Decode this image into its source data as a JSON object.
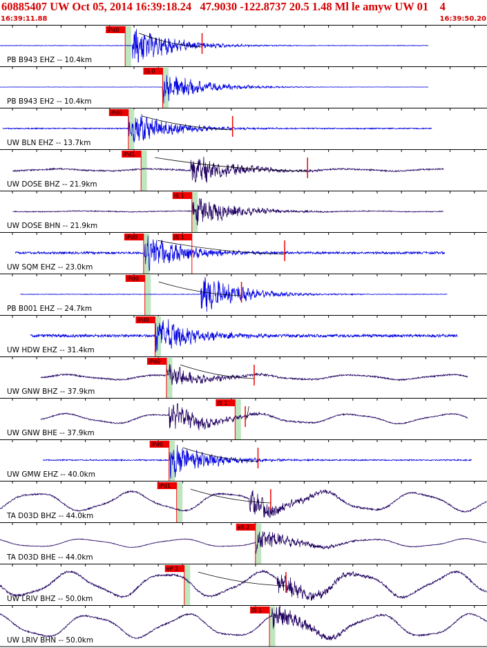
{
  "header": {
    "title": "60885407 UW Oct 05, 2014 16:39:18.24   47.9030 -122.8737 20.5 1.48 Ml le amyw UW 01    4",
    "start_time": "16:39:11.88",
    "end_time": "16:39:50.20"
  },
  "colors": {
    "title": "#d40000",
    "velocity_trace": "#0000e0",
    "broadband_trace": "#200060",
    "pick": "#ee0000",
    "pick_window": "#bfe6bf",
    "coda": "#000000",
    "separator": "#000000"
  },
  "chart_data": {
    "type": "seismogram",
    "time_range_s": [
      0,
      38.32
    ],
    "channels": [
      {
        "label": "PB B943 EHZ -- 10.4km",
        "color": "velocity_trace",
        "data_start_s": 0.0,
        "data_end_s": 33.7,
        "noise": 0.02,
        "amp": 0.95,
        "lowfreq": 0,
        "picks": [
          {
            "label": "iPd0",
            "t": 9.85,
            "bar": true
          }
        ],
        "arrival_s": 10.4,
        "s_marker_s": 15.9
      },
      {
        "label": "PB B943 EH2 -- 10.4km",
        "color": "velocity_trace",
        "data_start_s": 0.0,
        "data_end_s": 33.7,
        "noise": 0.01,
        "amp": 0.7,
        "lowfreq": 0,
        "picks": [
          {
            "label": "iS 0",
            "t": 12.8,
            "bar": true
          }
        ],
        "arrival_s": 12.8
      },
      {
        "label": "UW BLN EHZ -- 13.7km",
        "color": "velocity_trace",
        "data_start_s": 0.2,
        "data_end_s": 34.0,
        "noise": 0.04,
        "amp": 0.85,
        "lowfreq": 0,
        "picks": [
          {
            "label": "iPd0",
            "t": 10.1,
            "bar": true
          }
        ],
        "arrival_s": 10.1,
        "s_marker_s": 18.3
      },
      {
        "label": "UW DOSE BHZ -- 21.9km",
        "color": "broadband_trace",
        "data_start_s": 1.0,
        "data_end_s": 34.9,
        "noise": 0.05,
        "amp": 0.8,
        "lowfreq": 0.08,
        "picks": [
          {
            "label": "iPd1",
            "t": 11.1,
            "bar": true
          }
        ],
        "arrival_s": 15.0,
        "s_marker_s": 24.2
      },
      {
        "label": "UW DOSE BHN -- 21.9km",
        "color": "broadband_trace",
        "data_start_s": 1.0,
        "data_end_s": 34.9,
        "noise": 0.03,
        "amp": 0.8,
        "lowfreq": 0.03,
        "picks": [
          {
            "label": "iS 1",
            "t": 15.1,
            "bar": true
          }
        ],
        "arrival_s": 15.1
      },
      {
        "label": "UW SQM EHZ -- 23.0km",
        "color": "velocity_trace",
        "data_start_s": 1.2,
        "data_end_s": 35.0,
        "noise": 0.08,
        "amp": 0.95,
        "lowfreq": 0,
        "picks": [
          {
            "label": "iPd0",
            "t": 11.3,
            "bar": true
          },
          {
            "label": "iS 1",
            "t": 15.1,
            "bar": false
          }
        ],
        "arrival_s": 11.3,
        "s_marker_s": 22.4
      },
      {
        "label": "PB B001 EHZ -- 24.7km",
        "color": "velocity_trace",
        "data_start_s": 1.6,
        "data_end_s": 35.2,
        "noise": 0.02,
        "amp": 0.9,
        "lowfreq": 0,
        "picks": [
          {
            "label": "iPd0",
            "t": 11.4,
            "bar": true
          }
        ],
        "arrival_s": 15.8,
        "s_marker_s": 19.0
      },
      {
        "label": "UW HDW EHZ -- 31.4km",
        "color": "velocity_trace",
        "data_start_s": 2.4,
        "data_end_s": 36.0,
        "noise": 0.1,
        "amp": 0.9,
        "lowfreq": 0,
        "picks": [
          {
            "label": "iPd0",
            "t": 12.2,
            "bar": true
          }
        ],
        "arrival_s": 12.2
      },
      {
        "label": "UW GNW BHZ -- 37.9km",
        "color": "broadband_trace",
        "data_start_s": 3.2,
        "data_end_s": 36.8,
        "noise": 0.05,
        "amp": 0.55,
        "lowfreq": 0.18,
        "picks": [
          {
            "label": "iPd0",
            "t": 13.1,
            "bar": true
          }
        ],
        "arrival_s": 13.1,
        "s_marker_s": 20.0
      },
      {
        "label": "UW GNW BHE -- 37.9km",
        "color": "broadband_trace",
        "data_start_s": 3.2,
        "data_end_s": 36.8,
        "noise": 0.04,
        "amp": 0.65,
        "lowfreq": 0.35,
        "picks": [
          {
            "label": "iS 1",
            "t": 18.5,
            "bar": true
          }
        ],
        "arrival_s": 13.3,
        "s_marker_s": 19.3
      },
      {
        "label": "UW GMW EHZ -- 40.0km",
        "color": "velocity_trace",
        "data_start_s": 3.4,
        "data_end_s": 37.1,
        "noise": 0.04,
        "amp": 0.9,
        "lowfreq": 0,
        "picks": [
          {
            "label": "iPd0",
            "t": 13.3,
            "bar": true
          }
        ],
        "arrival_s": 13.3,
        "s_marker_s": 20.3
      },
      {
        "label": "TA D03D BHZ -- 44.0km",
        "color": "broadband_trace",
        "data_start_s": 0.0,
        "data_end_s": 38.3,
        "noise": 0.05,
        "amp": 0.6,
        "lowfreq": 0.7,
        "picks": [
          {
            "label": "iPd1",
            "t": 13.9,
            "bar": true
          }
        ],
        "arrival_s": 19.6,
        "s_marker_s": 21.3
      },
      {
        "label": "TA D03D BHE -- 44.0km",
        "color": "broadband_trace",
        "data_start_s": 0.0,
        "data_end_s": 38.3,
        "noise": 0.02,
        "amp": 0.55,
        "lowfreq": 0.3,
        "picks": [
          {
            "label": "eS 2",
            "t": 20.1,
            "bar": true
          }
        ],
        "arrival_s": 20.1
      },
      {
        "label": "UW LRIV BHZ -- 50.0km",
        "color": "broadband_trace",
        "data_start_s": 0.0,
        "data_end_s": 38.3,
        "noise": 0.07,
        "amp": 0.6,
        "lowfreq": 0.9,
        "picks": [
          {
            "label": "eP 2",
            "t": 14.5,
            "bar": true
          }
        ],
        "arrival_s": 21.8,
        "s_marker_s": 22.5
      },
      {
        "label": "UW LRIV BHN -- 50.0km",
        "color": "broadband_trace",
        "data_start_s": 0.0,
        "data_end_s": 38.3,
        "noise": 0.05,
        "amp": 0.55,
        "lowfreq": 0.85,
        "picks": [
          {
            "label": "iS 1",
            "t": 21.2,
            "bar": true
          }
        ],
        "arrival_s": 21.4
      }
    ]
  }
}
